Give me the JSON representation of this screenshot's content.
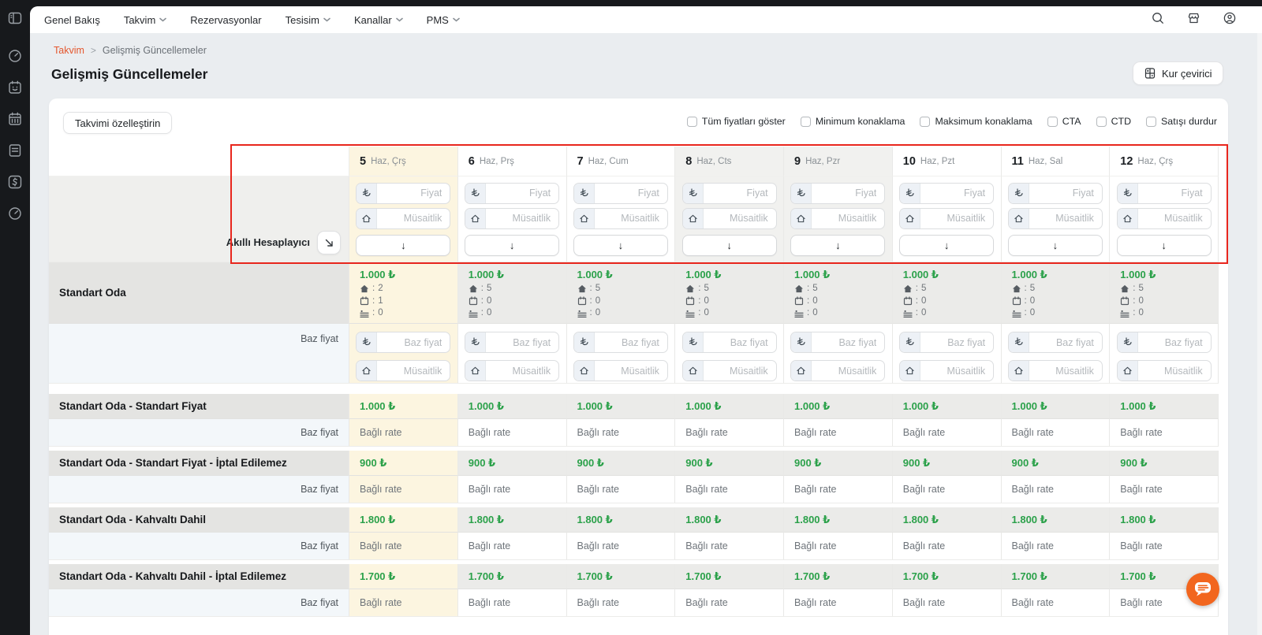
{
  "nav": {
    "items": [
      {
        "label": "Genel Bakış",
        "dropdown": false
      },
      {
        "label": "Takvim",
        "dropdown": true
      },
      {
        "label": "Rezervasyonlar",
        "dropdown": false
      },
      {
        "label": "Tesisim",
        "dropdown": true
      },
      {
        "label": "Kanallar",
        "dropdown": true
      },
      {
        "label": "PMS",
        "dropdown": true
      }
    ]
  },
  "breadcrumb": {
    "parent": "Takvim",
    "separator": ">",
    "current": "Gelişmiş Güncellemeler"
  },
  "page": {
    "title": "Gelişmiş Güncellemeler",
    "currency_button": "Kur çevirici"
  },
  "toolbar": {
    "customize_button": "Takvimi özelleştirin",
    "checkboxes": [
      "Tüm fiyatları göster",
      "Minimum konaklama",
      "Maksimum konaklama",
      "CTA",
      "CTD",
      "Satışı durdur"
    ]
  },
  "calendar": {
    "days": [
      {
        "num": "5",
        "sub": "Haz, Çrş",
        "today": true,
        "weekend": false
      },
      {
        "num": "6",
        "sub": "Haz, Prş",
        "today": false,
        "weekend": false
      },
      {
        "num": "7",
        "sub": "Haz, Cum",
        "today": false,
        "weekend": false
      },
      {
        "num": "8",
        "sub": "Haz, Cts",
        "today": false,
        "weekend": true
      },
      {
        "num": "9",
        "sub": "Haz, Pzr",
        "today": false,
        "weekend": true
      },
      {
        "num": "10",
        "sub": "Haz, Pzt",
        "today": false,
        "weekend": false
      },
      {
        "num": "11",
        "sub": "Haz, Sal",
        "today": false,
        "weekend": false
      },
      {
        "num": "12",
        "sub": "Haz, Çrş",
        "today": false,
        "weekend": false
      }
    ],
    "smart_calc_label": "Akıllı Hesaplayıcı",
    "price_placeholder": "Fiyat",
    "availability_placeholder": "Müsaitlik",
    "base_price_placeholder": "Baz fiyat",
    "base_price_label": "Baz fiyat",
    "linked_rate_text": "Bağlı rate",
    "currency_symbol": "₺",
    "apply_arrow": "↓"
  },
  "room": {
    "name": "Standart Oda",
    "price": "1.000 ₺",
    "stats": [
      {
        "avail": "2",
        "bookings": "1",
        "extra": "0"
      },
      {
        "avail": "5",
        "bookings": "0",
        "extra": "0"
      },
      {
        "avail": "5",
        "bookings": "0",
        "extra": "0"
      },
      {
        "avail": "5",
        "bookings": "0",
        "extra": "0"
      },
      {
        "avail": "5",
        "bookings": "0",
        "extra": "0"
      },
      {
        "avail": "5",
        "bookings": "0",
        "extra": "0"
      },
      {
        "avail": "5",
        "bookings": "0",
        "extra": "0"
      },
      {
        "avail": "5",
        "bookings": "0",
        "extra": "0"
      }
    ]
  },
  "rates": [
    {
      "name": "Standart Oda - Standart Fiyat",
      "price": "1.000 ₺"
    },
    {
      "name": "Standart Oda - Standart Fiyat - İptal Edilemez",
      "price": "900 ₺"
    },
    {
      "name": "Standart Oda - Kahvaltı Dahil",
      "price": "1.800 ₺"
    },
    {
      "name": "Standart Oda - Kahvaltı Dahil - İptal Edilemez",
      "price": "1.700 ₺"
    }
  ],
  "icons": {
    "topbar": [
      "magnifier",
      "storefront",
      "user-circle"
    ],
    "currency_prefix": "turkish-lira",
    "availability_prefix": "house",
    "stats": [
      "house",
      "calendar",
      "bed"
    ],
    "smart_calc_button": "arrow-down-right",
    "chat": "speech-bubble",
    "currency_converter": "calculator"
  },
  "colors": {
    "price_green": "#2ba14a",
    "today_bg": "#fcf5e0",
    "highlight_red": "#e8261d",
    "chat_orange": "#f2661e",
    "breadcrumb_accent": "#e4572e",
    "rail_bg": "#17191c"
  }
}
